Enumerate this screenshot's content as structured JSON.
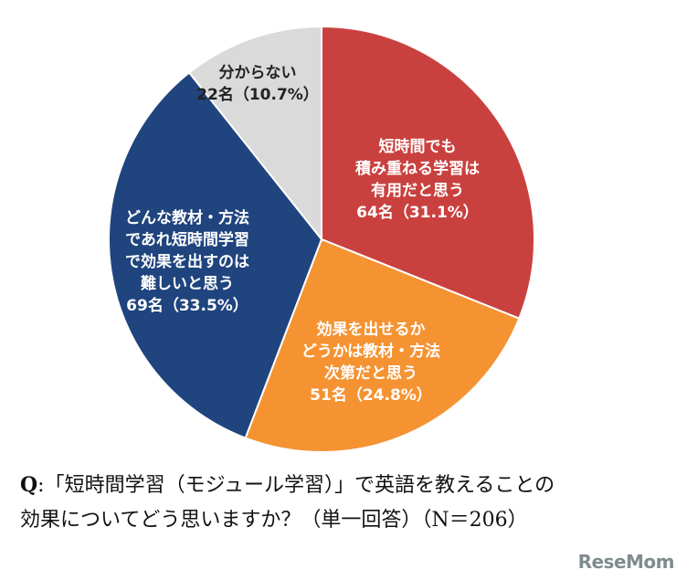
{
  "chart_data": {
    "type": "pie",
    "start_angle_deg": 0,
    "direction": "clockwise",
    "slices": [
      {
        "lines": [
          "短時間でも",
          "積み重ねる学習は",
          "有用だと思う",
          "64名（31.1%）"
        ],
        "count": 64,
        "percent": 31.1,
        "color": "#c9413f",
        "text_color": "#ffffff"
      },
      {
        "lines": [
          "効果を出せるか",
          "どうかは教材・方法",
          "次第だと思う",
          "51名（24.8%）"
        ],
        "count": 51,
        "percent": 24.8,
        "color": "#f59333",
        "text_color": "#ffffff"
      },
      {
        "lines": [
          "どんな教材・方法",
          "であれ短時間学習",
          "で効果を出すのは",
          "難しいと思う",
          "69名（33.5%）"
        ],
        "count": 69,
        "percent": 33.5,
        "color": "#1f447e",
        "text_color": "#ffffff"
      },
      {
        "lines": [
          "分からない",
          "22名（10.7%）"
        ],
        "count": 22,
        "percent": 10.7,
        "color": "#dadada",
        "text_color": "#222222"
      }
    ]
  },
  "question": {
    "prefix": "Q",
    "line1": ":「短時間学習（モジュール学習）」で英語を教えることの",
    "line2": "効果についてどう思いますか？（単一回答）（N＝206）"
  },
  "logo": {
    "text": "ReseMom"
  }
}
